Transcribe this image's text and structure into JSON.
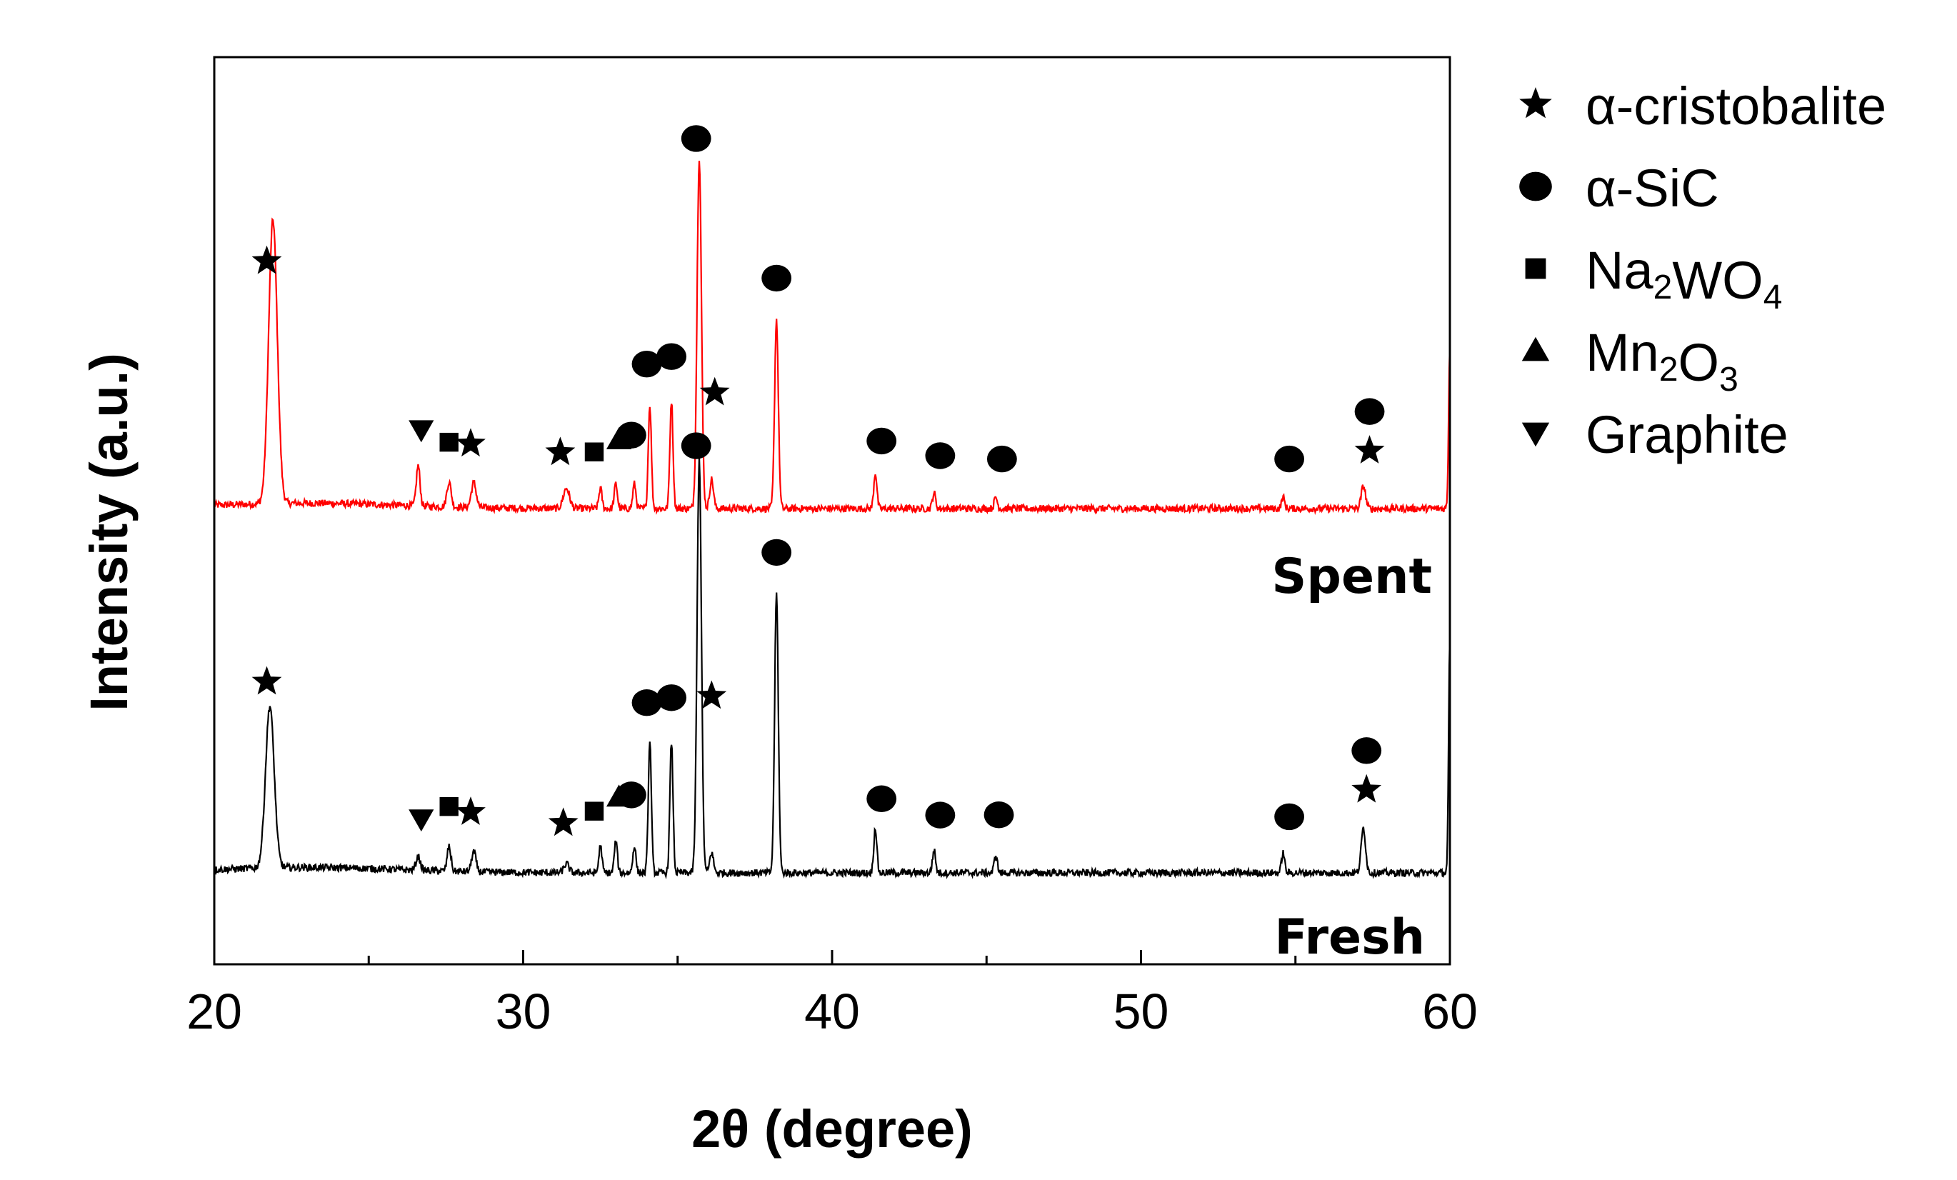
{
  "chart_data": {
    "type": "line",
    "title": "",
    "xlabel": "2θ  (degree)",
    "ylabel": "Intensity (a.u.)",
    "xlim": [
      20,
      60
    ],
    "xticks": [
      20,
      30,
      40,
      50,
      60
    ],
    "yticks_shown": false,
    "series": [
      {
        "name": "Spent",
        "color": "#ff0000",
        "baseline": 1,
        "peaks": [
          {
            "x": 21.9,
            "h": 6.3,
            "w": 0.14
          },
          {
            "x": 26.6,
            "h": 0.9,
            "w": 0.06
          },
          {
            "x": 27.6,
            "h": 0.55,
            "w": 0.07
          },
          {
            "x": 28.4,
            "h": 0.55,
            "w": 0.08
          },
          {
            "x": 31.4,
            "h": 0.45,
            "w": 0.1
          },
          {
            "x": 32.5,
            "h": 0.45,
            "w": 0.05
          },
          {
            "x": 33.0,
            "h": 0.55,
            "w": 0.05
          },
          {
            "x": 33.6,
            "h": 0.55,
            "w": 0.05
          },
          {
            "x": 34.1,
            "h": 2.3,
            "w": 0.05
          },
          {
            "x": 34.8,
            "h": 2.4,
            "w": 0.05
          },
          {
            "x": 35.7,
            "h": 7.8,
            "w": 0.07
          },
          {
            "x": 36.1,
            "h": 0.65,
            "w": 0.06
          },
          {
            "x": 38.2,
            "h": 4.2,
            "w": 0.06
          },
          {
            "x": 41.4,
            "h": 0.8,
            "w": 0.05
          },
          {
            "x": 43.3,
            "h": 0.35,
            "w": 0.05
          },
          {
            "x": 45.3,
            "h": 0.25,
            "w": 0.05
          },
          {
            "x": 54.6,
            "h": 0.25,
            "w": 0.05
          },
          {
            "x": 57.2,
            "h": 0.5,
            "w": 0.07
          },
          {
            "x": 60.0,
            "h": 3.6,
            "w": 0.04
          }
        ]
      },
      {
        "name": "Fresh",
        "color": "#000000",
        "baseline": 0,
        "peaks": [
          {
            "x": 21.8,
            "h": 3.6,
            "w": 0.14
          },
          {
            "x": 26.6,
            "h": 0.3,
            "w": 0.07
          },
          {
            "x": 27.6,
            "h": 0.55,
            "w": 0.06
          },
          {
            "x": 28.4,
            "h": 0.45,
            "w": 0.07
          },
          {
            "x": 31.4,
            "h": 0.2,
            "w": 0.08
          },
          {
            "x": 32.5,
            "h": 0.6,
            "w": 0.05
          },
          {
            "x": 33.0,
            "h": 0.7,
            "w": 0.05
          },
          {
            "x": 33.6,
            "h": 0.6,
            "w": 0.05
          },
          {
            "x": 34.1,
            "h": 2.9,
            "w": 0.05
          },
          {
            "x": 34.8,
            "h": 2.9,
            "w": 0.05
          },
          {
            "x": 35.7,
            "h": 9.2,
            "w": 0.07
          },
          {
            "x": 36.1,
            "h": 0.45,
            "w": 0.06
          },
          {
            "x": 38.2,
            "h": 6.2,
            "w": 0.06
          },
          {
            "x": 41.4,
            "h": 1.0,
            "w": 0.05
          },
          {
            "x": 43.3,
            "h": 0.5,
            "w": 0.05
          },
          {
            "x": 45.3,
            "h": 0.4,
            "w": 0.05
          },
          {
            "x": 54.6,
            "h": 0.45,
            "w": 0.05
          },
          {
            "x": 57.2,
            "h": 1.0,
            "w": 0.07
          },
          {
            "x": 60.0,
            "h": 5.2,
            "w": 0.04
          }
        ]
      }
    ],
    "annotations": [
      {
        "series": "Spent",
        "x": 21.7,
        "marker": "star"
      },
      {
        "series": "Spent",
        "x": 26.7,
        "marker": "triangle-down"
      },
      {
        "series": "Spent",
        "x": 27.6,
        "marker": "square"
      },
      {
        "series": "Spent",
        "x": 28.3,
        "marker": "star"
      },
      {
        "series": "Spent",
        "x": 31.2,
        "marker": "star"
      },
      {
        "series": "Spent",
        "x": 32.3,
        "marker": "square"
      },
      {
        "series": "Spent",
        "x": 33.1,
        "marker": "triangle-up"
      },
      {
        "series": "Spent",
        "x": 33.5,
        "marker": "circle"
      },
      {
        "series": "Spent",
        "x": 34.0,
        "marker": "circle"
      },
      {
        "series": "Spent",
        "x": 34.8,
        "marker": "circle"
      },
      {
        "series": "Spent",
        "x": 35.6,
        "marker": "circle"
      },
      {
        "series": "Spent",
        "x": 36.2,
        "marker": "star"
      },
      {
        "series": "Spent",
        "x": 38.2,
        "marker": "circle"
      },
      {
        "series": "Spent",
        "x": 41.6,
        "marker": "circle"
      },
      {
        "series": "Spent",
        "x": 43.5,
        "marker": "circle"
      },
      {
        "series": "Spent",
        "x": 45.5,
        "marker": "circle"
      },
      {
        "series": "Spent",
        "x": 54.8,
        "marker": "circle"
      },
      {
        "series": "Spent",
        "x": 57.4,
        "marker": "star"
      },
      {
        "series": "Spent",
        "x": 57.4,
        "marker": "circle"
      },
      {
        "series": "Fresh",
        "x": 21.7,
        "marker": "star"
      },
      {
        "series": "Fresh",
        "x": 26.7,
        "marker": "triangle-down"
      },
      {
        "series": "Fresh",
        "x": 27.6,
        "marker": "square"
      },
      {
        "series": "Fresh",
        "x": 28.3,
        "marker": "star"
      },
      {
        "series": "Fresh",
        "x": 31.3,
        "marker": "star"
      },
      {
        "series": "Fresh",
        "x": 32.3,
        "marker": "square"
      },
      {
        "series": "Fresh",
        "x": 33.1,
        "marker": "triangle-up"
      },
      {
        "series": "Fresh",
        "x": 33.5,
        "marker": "circle"
      },
      {
        "series": "Fresh",
        "x": 34.0,
        "marker": "circle"
      },
      {
        "series": "Fresh",
        "x": 34.8,
        "marker": "circle"
      },
      {
        "series": "Fresh",
        "x": 35.6,
        "marker": "circle"
      },
      {
        "series": "Fresh",
        "x": 36.1,
        "marker": "star"
      },
      {
        "series": "Fresh",
        "x": 38.2,
        "marker": "circle"
      },
      {
        "series": "Fresh",
        "x": 41.6,
        "marker": "circle"
      },
      {
        "series": "Fresh",
        "x": 43.5,
        "marker": "circle"
      },
      {
        "series": "Fresh",
        "x": 45.4,
        "marker": "circle"
      },
      {
        "series": "Fresh",
        "x": 54.8,
        "marker": "circle"
      },
      {
        "series": "Fresh",
        "x": 57.3,
        "marker": "star"
      },
      {
        "series": "Fresh",
        "x": 57.3,
        "marker": "circle"
      }
    ],
    "legend_position": "right",
    "legend": [
      {
        "marker": "star",
        "label": "α-cristobalite"
      },
      {
        "marker": "circle",
        "label": "α-SiC"
      },
      {
        "marker": "square",
        "parts": [
          {
            "t": "Na"
          },
          {
            "t": "2",
            "sub": true
          },
          {
            "t": "WO"
          },
          {
            "t": "4",
            "sub": true
          }
        ]
      },
      {
        "marker": "triangle-up",
        "parts": [
          {
            "t": "Mn"
          },
          {
            "t": "2",
            "sub": true
          },
          {
            "t": "O"
          },
          {
            "t": "3",
            "sub": true
          }
        ]
      },
      {
        "marker": "triangle-down",
        "label": "Graphite"
      }
    ]
  }
}
